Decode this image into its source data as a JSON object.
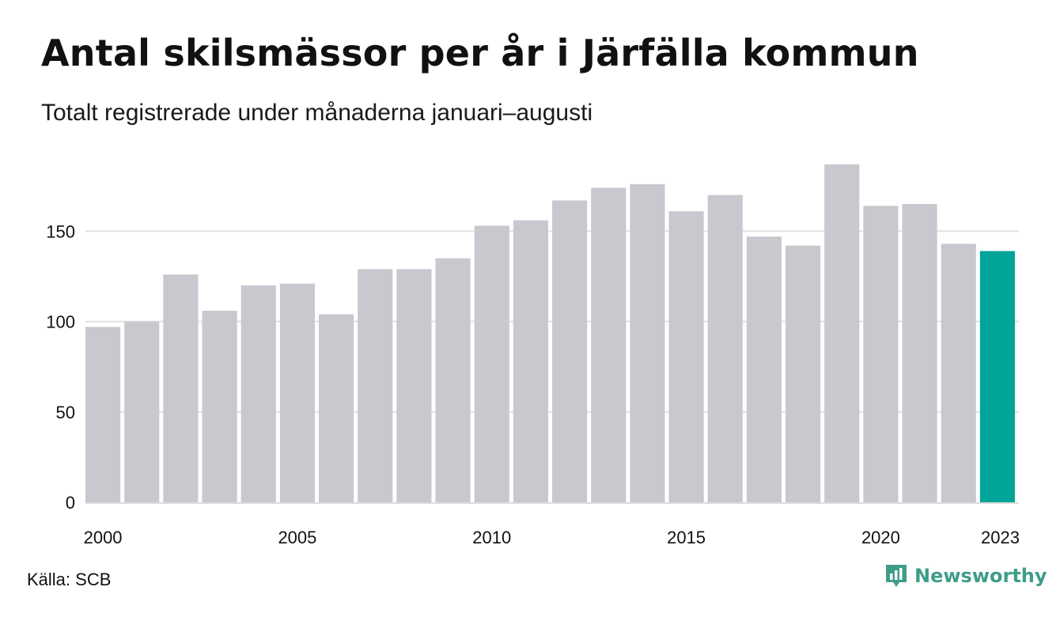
{
  "title": "Antal skilsmässor per år i Järfälla kommun",
  "subtitle": "Totalt registrerade under månaderna januari–augusti",
  "source": "Källa: SCB",
  "brand": {
    "name": "Newsworthy",
    "icon": "newsworthy-logo-icon",
    "color": "#3f9c89"
  },
  "chart_data": {
    "type": "bar",
    "categories": [
      "2000",
      "2001",
      "2002",
      "2003",
      "2004",
      "2005",
      "2006",
      "2007",
      "2008",
      "2009",
      "2010",
      "2011",
      "2012",
      "2013",
      "2014",
      "2015",
      "2016",
      "2017",
      "2018",
      "2019",
      "2020",
      "2021",
      "2022",
      "2023"
    ],
    "values": [
      97,
      100,
      126,
      106,
      120,
      121,
      104,
      129,
      129,
      135,
      153,
      156,
      167,
      174,
      176,
      161,
      170,
      147,
      142,
      187,
      164,
      165,
      143,
      139
    ],
    "x_tick_labels": [
      "2000",
      "2005",
      "2010",
      "2015",
      "2020",
      "2023"
    ],
    "y_ticks": [
      0,
      50,
      100,
      150
    ],
    "ylim": [
      0,
      190
    ],
    "grid": true,
    "bar_color": "#c9c8cf",
    "highlight_color": "#00a499",
    "highlight_category": "2023",
    "xlabel": "",
    "ylabel": ""
  }
}
